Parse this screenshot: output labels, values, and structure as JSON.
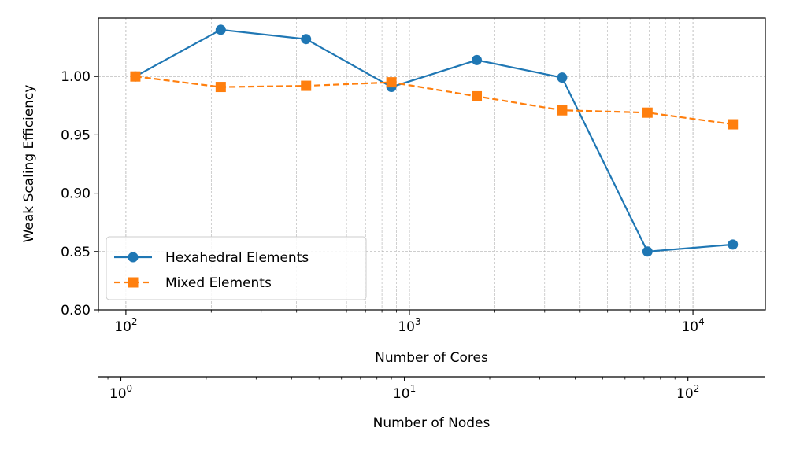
{
  "chart_data": {
    "type": "line",
    "x_scale": "log",
    "xlabel": "Number of Cores",
    "ylabel": "Weak Scaling Efficiency",
    "x2label": "Number of Nodes",
    "xlim": [
      80,
      18000
    ],
    "ylim": [
      0.8,
      1.05
    ],
    "x2lim": [
      0.8333,
      187.5
    ],
    "x_major_ticks": [
      {
        "value": 100,
        "base": "10",
        "exp": "2"
      },
      {
        "value": 1000,
        "base": "10",
        "exp": "3"
      },
      {
        "value": 10000,
        "base": "10",
        "exp": "4"
      }
    ],
    "x2_major_ticks": [
      {
        "value": 1,
        "base": "10",
        "exp": "0"
      },
      {
        "value": 10,
        "base": "10",
        "exp": "1"
      },
      {
        "value": 100,
        "base": "10",
        "exp": "2"
      }
    ],
    "y_ticks": [
      {
        "value": 0.8,
        "label": "0.80"
      },
      {
        "value": 0.85,
        "label": "0.85"
      },
      {
        "value": 0.9,
        "label": "0.90"
      },
      {
        "value": 0.95,
        "label": "0.95"
      },
      {
        "value": 1.0,
        "label": "1.00"
      }
    ],
    "grid": true,
    "legend_position": "lower-left",
    "x": [
      108,
      216,
      432,
      864,
      1728,
      3456,
      6912,
      13824
    ],
    "series": [
      {
        "name": "Hexahedral Elements",
        "values": [
          1.0,
          1.04,
          1.032,
          0.991,
          1.014,
          0.999,
          0.85,
          0.856
        ],
        "color": "#1f77b4",
        "marker": "circle",
        "linestyle": "solid"
      },
      {
        "name": "Mixed Elements",
        "values": [
          1.0,
          0.991,
          0.992,
          0.995,
          0.983,
          0.971,
          0.969,
          0.959
        ],
        "color": "#ff7f0e",
        "marker": "square",
        "linestyle": "dashed"
      }
    ]
  }
}
